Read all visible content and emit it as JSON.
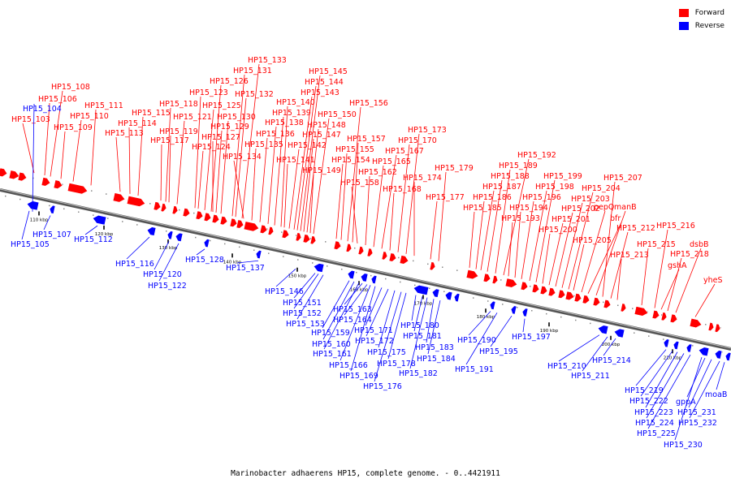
{
  "legend": {
    "forward_label": "Forward",
    "reverse_label": "Reverse",
    "forward_color": "#ff0000",
    "reverse_color": "#0000ff"
  },
  "caption": "Marinobacter adhaerens HP15, complete genome. - 0..4421911",
  "axis": {
    "ticks": [
      "110 kbp",
      "120 kbp",
      "130 kbp",
      "140 kbp",
      "150 kbp",
      "160 kbp",
      "170 kbp",
      "180 kbp",
      "190 kbp",
      "200 kbp",
      "210 kbp"
    ]
  },
  "forward_genes": [
    "HP15_103",
    "HP15_106",
    "HP15_108",
    "HP15_109",
    "HP15_110",
    "HP15_111",
    "HP15_113",
    "HP15_114",
    "HP15_115",
    "HP15_117",
    "HP15_118",
    "HP15_119",
    "HP15_121",
    "HP15_123",
    "HP15_124",
    "HP15_125",
    "HP15_126",
    "HP15_127",
    "HP15_129",
    "HP15_130",
    "HP15_131",
    "HP15_132",
    "HP15_133",
    "HP15_134",
    "HP15_135",
    "HP15_136",
    "HP15_138",
    "HP15_139",
    "HP15_140",
    "HP15_141",
    "HP15_142",
    "HP15_143",
    "HP15_144",
    "HP15_145",
    "HP15_147",
    "HP15_148",
    "HP15_149",
    "HP15_150",
    "HP15_154",
    "HP15_155",
    "HP15_156",
    "HP15_157",
    "HP15_158",
    "HP15_162",
    "HP15_165",
    "HP15_167",
    "HP15_168",
    "HP15_170",
    "HP15_173",
    "HP15_174",
    "HP15_177",
    "HP15_179",
    "HP15_185",
    "HP15_186",
    "HP15_187",
    "HP15_188",
    "HP15_189",
    "HP15_192",
    "HP15_193",
    "HP15_194",
    "HP15_196",
    "HP15_198",
    "HP15_199",
    "HP15_200",
    "HP15_201",
    "HP15_202",
    "HP15_203",
    "HP15_204",
    "HP15_205",
    "pepQ",
    "bfr",
    "manB",
    "HP15_207",
    "HP15_212",
    "HP15_213",
    "HP15_215",
    "HP15_216",
    "gshA",
    "HP15_218",
    "dsbB",
    "yheS"
  ],
  "reverse_genes": [
    "HP15_104",
    "HP15_105",
    "HP15_107",
    "HP15_112",
    "HP15_116",
    "HP15_120",
    "HP15_122",
    "HP15_128",
    "HP15_137",
    "HP15_146",
    "HP15_151",
    "HP15_152",
    "HP15_153",
    "HP15_159",
    "HP15_160",
    "HP15_161",
    "HP15_163",
    "HP15_164",
    "HP15_166",
    "HP15_169",
    "HP15_171",
    "HP15_172",
    "HP15_175",
    "HP15_176",
    "HP15_178",
    "HP15_180",
    "HP15_181",
    "HP15_182",
    "HP15_183",
    "HP15_184",
    "HP15_190",
    "HP15_191",
    "HP15_195",
    "HP15_197",
    "HP15_210",
    "HP15_211",
    "HP15_214",
    "HP15_219",
    "HP15_222",
    "HP15_223",
    "HP15_224",
    "HP15_225",
    "HP15_230",
    "gppA",
    "HP15_231",
    "HP15_232",
    "moaB"
  ]
}
